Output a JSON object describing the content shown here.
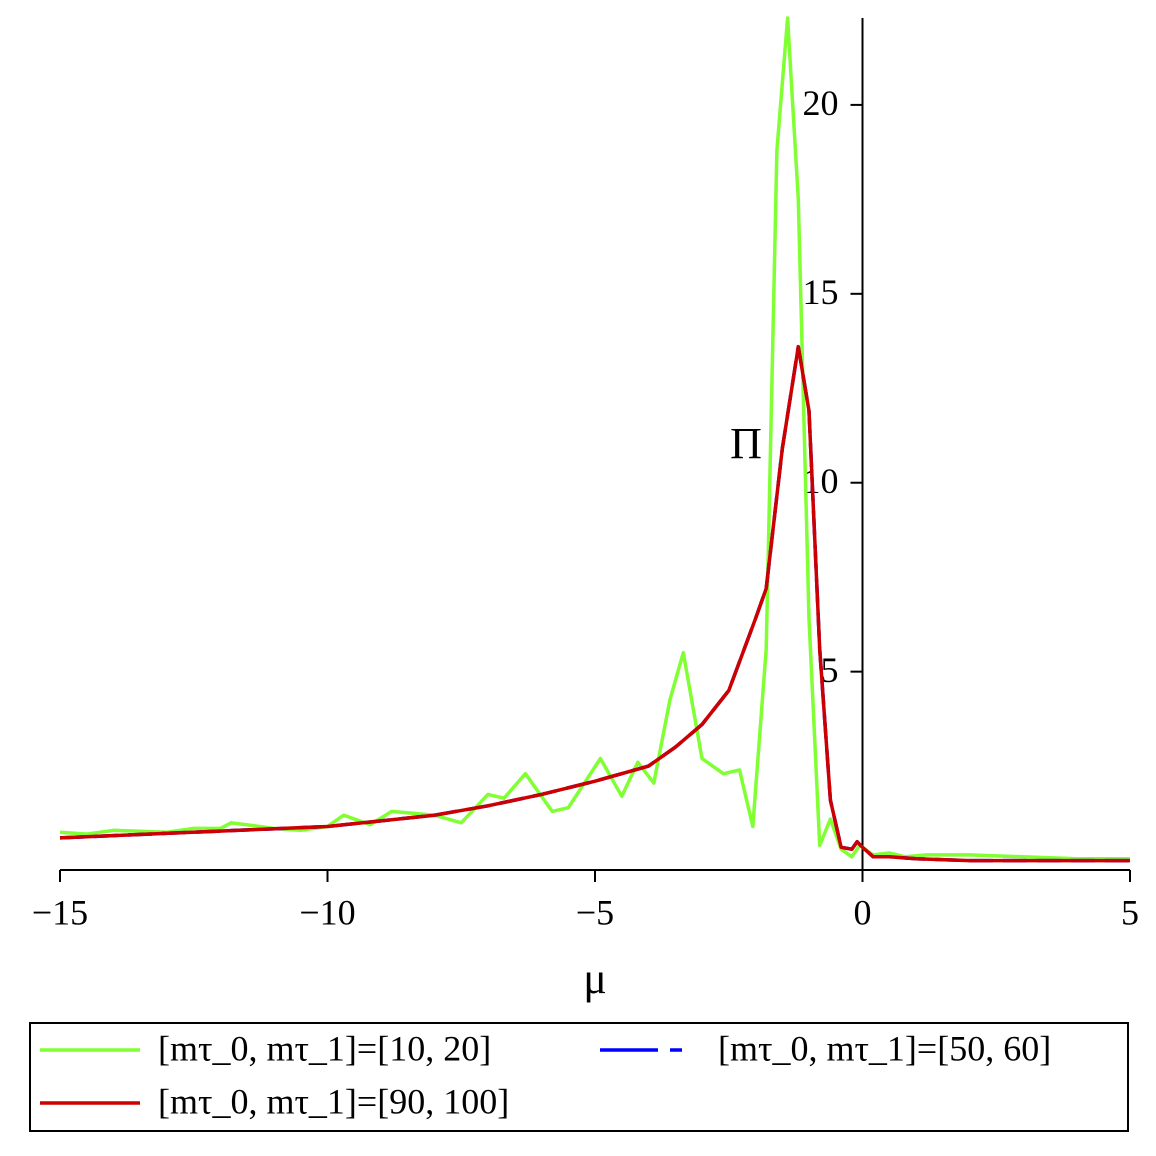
{
  "chart_data": {
    "type": "line",
    "x_label": "μ",
    "y_label": "Π",
    "xlim": [
      -15,
      5
    ],
    "ylim": [
      -0.25,
      22.3
    ],
    "xticks": [
      {
        "value": -15,
        "label": "−15"
      },
      {
        "value": -10,
        "label": "−10"
      },
      {
        "value": -5,
        "label": "−5"
      },
      0,
      5
    ],
    "yticks": [
      5,
      10,
      15,
      20
    ],
    "grid": false,
    "legend": "bottom",
    "series": [
      {
        "name": "[mτ_0, mτ_1]=[10, 20]",
        "color": "#80ff33",
        "dash": false,
        "x": [
          -15,
          -14.5,
          -14,
          -13,
          -12.5,
          -12,
          -11.8,
          -11,
          -10.5,
          -10,
          -9.7,
          -9.2,
          -8.8,
          -8,
          -7.5,
          -7,
          -6.7,
          -6.3,
          -5.8,
          -5.5,
          -4.9,
          -4.5,
          -4.2,
          -3.9,
          -3.6,
          -3.35,
          -3,
          -2.6,
          -2.3,
          -2.05,
          -1.8,
          -1.6,
          -1.4,
          -1.2,
          -1,
          -0.8,
          -0.6,
          -0.4,
          -0.2,
          -0.05,
          0.2,
          0.5,
          0.8,
          1.2,
          2,
          3,
          4,
          5
        ],
        "values": [
          0.75,
          0.7,
          0.8,
          0.75,
          0.85,
          0.85,
          1.0,
          0.85,
          0.8,
          0.9,
          1.2,
          0.95,
          1.3,
          1.2,
          1.0,
          1.75,
          1.65,
          2.3,
          1.3,
          1.4,
          2.7,
          1.7,
          2.6,
          2.05,
          4.25,
          5.5,
          2.7,
          2.3,
          2.4,
          0.9,
          5.6,
          18.8,
          22.3,
          17.5,
          6.4,
          0.4,
          1.1,
          0.3,
          0.1,
          0.4,
          0.15,
          0.2,
          0.1,
          0.15,
          0.15,
          0.1,
          0.05,
          0.05
        ]
      },
      {
        "name": "[mτ_0, mτ_1]=[50, 60]",
        "color": "#0000ff",
        "dash": true,
        "x": [
          -15,
          -10,
          -8,
          -7,
          -6,
          -5,
          -4,
          -3.5,
          -3,
          -2.5,
          -2,
          -1.8,
          -1.5,
          -1.2,
          -1,
          -0.8,
          -0.6,
          -0.4,
          -0.2,
          -0.1,
          0,
          0.2,
          0.5,
          1,
          2,
          5
        ],
        "values": [
          0.6,
          0.9,
          1.2,
          1.45,
          1.75,
          2.1,
          2.5,
          3.0,
          3.6,
          4.5,
          6.4,
          7.2,
          10.9,
          13.6,
          11.9,
          5.6,
          1.6,
          0.35,
          0.3,
          0.5,
          0.35,
          0.1,
          0.1,
          0.05,
          0,
          0
        ]
      },
      {
        "name": "[mτ_0, mτ_1]=[90, 100]",
        "color": "#cc0000",
        "dash": false,
        "x": [
          -15,
          -10,
          -8,
          -7,
          -6,
          -5,
          -4,
          -3.5,
          -3,
          -2.5,
          -2,
          -1.8,
          -1.5,
          -1.2,
          -1,
          -0.8,
          -0.6,
          -0.4,
          -0.2,
          -0.1,
          0,
          0.2,
          0.5,
          1,
          2,
          5
        ],
        "values": [
          0.6,
          0.9,
          1.2,
          1.45,
          1.75,
          2.1,
          2.5,
          3.0,
          3.6,
          4.5,
          6.4,
          7.2,
          10.9,
          13.6,
          11.9,
          5.6,
          1.6,
          0.35,
          0.3,
          0.5,
          0.35,
          0.1,
          0.1,
          0.05,
          0,
          0
        ]
      }
    ]
  }
}
